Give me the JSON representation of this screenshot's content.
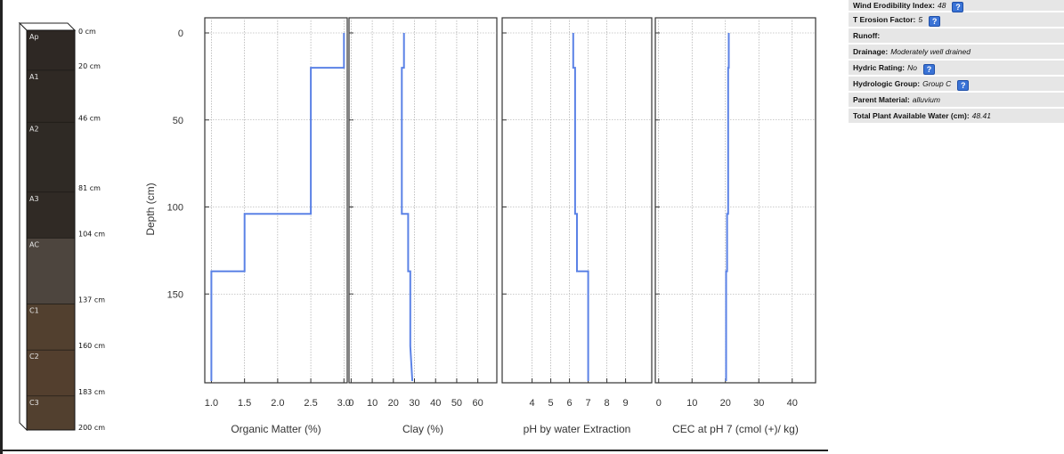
{
  "soil_profile": {
    "horizons": [
      {
        "name": "Ap",
        "top": 0,
        "bottom": 20,
        "color": "#2e2824"
      },
      {
        "name": "A1",
        "top": 20,
        "bottom": 46,
        "color": "#2f2924"
      },
      {
        "name": "A2",
        "top": 46,
        "bottom": 81,
        "color": "#2f2a25"
      },
      {
        "name": "A3",
        "top": 81,
        "bottom": 104,
        "color": "#302a25"
      },
      {
        "name": "AC",
        "top": 104,
        "bottom": 137,
        "color": "#4d453e"
      },
      {
        "name": "C1",
        "top": 137,
        "bottom": 160,
        "color": "#52402f"
      },
      {
        "name": "C2",
        "top": 160,
        "bottom": 183,
        "color": "#533f2e"
      },
      {
        "name": "C3",
        "top": 183,
        "bottom": 200,
        "color": "#52402f"
      }
    ],
    "depth_labels": [
      "0 cm",
      "20 cm",
      "46 cm",
      "81 cm",
      "104 cm",
      "137 cm",
      "160 cm",
      "183 cm",
      "200 cm"
    ]
  },
  "chart_data": [
    {
      "type": "line",
      "xlabel": "Organic Matter (%)",
      "ylabel": "Depth (cm)",
      "xlim": [
        0.9,
        3.05
      ],
      "ylim": [
        0,
        200
      ],
      "y_reversed": true,
      "xticks": [
        "1.0",
        "1.5",
        "2.0",
        "2.5",
        "3.0"
      ],
      "yticks": [
        "0",
        "50",
        "100",
        "150"
      ],
      "grid": true,
      "series": [
        {
          "x": [
            3.0,
            3.0,
            2.5,
            2.5,
            1.5,
            1.5,
            1.0,
            1.0
          ],
          "y": [
            0,
            20,
            20,
            104,
            104,
            137,
            137,
            200
          ]
        }
      ]
    },
    {
      "type": "line",
      "xlabel": "Clay (%)",
      "xlim": [
        -1,
        69
      ],
      "ylim": [
        0,
        200
      ],
      "y_reversed": true,
      "xticks": [
        "0",
        "10",
        "20",
        "30",
        "40",
        "50",
        "60"
      ],
      "grid": true,
      "series": [
        {
          "x": [
            25,
            25,
            24,
            24,
            27,
            27,
            28,
            28,
            29
          ],
          "y": [
            0,
            20,
            20,
            104,
            104,
            137,
            137,
            180,
            200
          ]
        }
      ]
    },
    {
      "type": "line",
      "xlabel": "pH by water Extraction",
      "xlim": [
        2.4,
        10.4
      ],
      "ylim": [
        0,
        200
      ],
      "y_reversed": true,
      "xticks": [
        "4",
        "5",
        "6",
        "7",
        "8",
        "9"
      ],
      "grid": true,
      "series": [
        {
          "x": [
            6.2,
            6.2,
            6.3,
            6.3,
            6.4,
            6.4,
            7.0,
            7.0
          ],
          "y": [
            0,
            20,
            20,
            104,
            104,
            137,
            137,
            200
          ]
        }
      ]
    },
    {
      "type": "line",
      "xlabel": "CEC at pH 7 (cmol (+)/ kg)",
      "xlim": [
        -1,
        47
      ],
      "ylim": [
        0,
        200
      ],
      "y_reversed": true,
      "xticks": [
        "0",
        "10",
        "20",
        "30",
        "40"
      ],
      "grid": true,
      "series": [
        {
          "x": [
            21,
            21,
            20.8,
            20.8,
            20.5,
            20.5,
            20.2,
            20.2
          ],
          "y": [
            0,
            20,
            20,
            104,
            104,
            137,
            137,
            200
          ]
        }
      ]
    }
  ],
  "line_color": "#5b82e6",
  "properties": [
    {
      "label": "Wind Erodibility Index:",
      "value": "48",
      "help": true
    },
    {
      "label": "T Erosion Factor:",
      "value": "5",
      "help": true
    },
    {
      "label": "Runoff:",
      "value": "",
      "help": false
    },
    {
      "label": "Drainage:",
      "value": "Moderately well drained",
      "help": false
    },
    {
      "label": "Hydric Rating:",
      "value": "No",
      "help": true
    },
    {
      "label": "Hydrologic Group:",
      "value": "Group C",
      "help": true
    },
    {
      "label": "Parent Material:",
      "value": "alluvium",
      "help": false
    },
    {
      "label": "Total Plant Available Water (cm):",
      "value": "48.41",
      "help": false
    }
  ],
  "help_icon": {
    "name": "help-icon",
    "glyph": "?"
  }
}
